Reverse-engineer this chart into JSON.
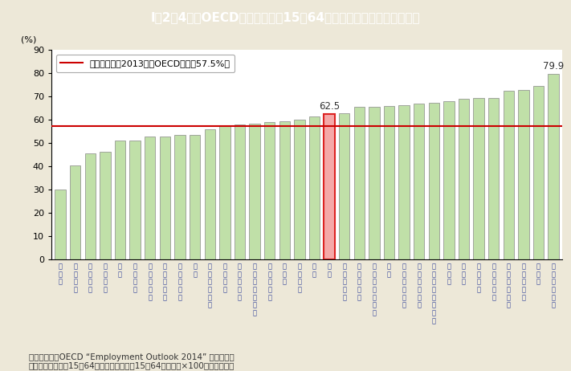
{
  "title": "I－2－4図　OECD諸国の女性（15～64歳）の就業率（平成２５年）",
  "ylabel": "(%)",
  "ylim": [
    0,
    90
  ],
  "yticks": [
    0,
    10,
    20,
    30,
    40,
    50,
    60,
    70,
    80,
    90
  ],
  "oecd_avg": 57.5,
  "legend_text": "平成２５年（2013年）OECD平均（57.5%）",
  "note1": "（備考）１．OECD “Employment Outlook 2014” より作成。",
  "note2": "　２．就業率は「15～64歳就業者数」／「15～64歳人口」×100により算出。",
  "categories": [
    "トルコ",
    "ギリシャ",
    "メキシコ",
    "イタリア",
    "チリ",
    "スペイン",
    "ハンガリー",
    "スロバキア",
    "ポーランド",
    "韓国",
    "アイルランド",
    "ベルギー",
    "ポルトガル",
    "ルクセンブルク",
    "スロベニア",
    "チェコ",
    "フランス",
    "米国",
    "日本",
    "イスラエル",
    "エストニア",
    "オーストラリア",
    "英国",
    "オーストリア",
    "フィンランド",
    "ニュージーランド",
    "ドイツ",
    "カナダ",
    "オランダ",
    "デンマーク",
    "スウェーデン",
    "ノルウェー",
    "スイス",
    "アイスランド"
  ],
  "values": [
    30.3,
    40.5,
    45.5,
    46.5,
    51.0,
    51.0,
    53.0,
    53.0,
    53.5,
    53.5,
    56.0,
    57.5,
    58.0,
    58.5,
    59.0,
    59.5,
    60.0,
    61.5,
    62.5,
    63.0,
    65.5,
    65.5,
    66.0,
    66.5,
    67.0,
    67.5,
    68.0,
    69.0,
    69.5,
    69.5,
    72.5,
    73.0,
    74.5,
    79.9
  ],
  "highlight_index": 18,
  "highlight_bar_color": "#f5a8a8",
  "highlight_bar_edge": "#dd2222",
  "bar_color": "#c0e0a8",
  "bar_edge": "#888888",
  "oecd_line_color": "#cc0000",
  "background_color": "#ede8d8",
  "plot_bg_color": "#ffffff",
  "title_bg_color": "#3ab8cc",
  "title_text_color": "#ffffff",
  "label_color": "#334499",
  "annotation_hi": "62.5",
  "annotation_last": "79.9",
  "footnote_fontsize": 7.5,
  "bar_label_fontsize": 8.5,
  "tick_fontsize": 8,
  "title_fontsize": 11
}
